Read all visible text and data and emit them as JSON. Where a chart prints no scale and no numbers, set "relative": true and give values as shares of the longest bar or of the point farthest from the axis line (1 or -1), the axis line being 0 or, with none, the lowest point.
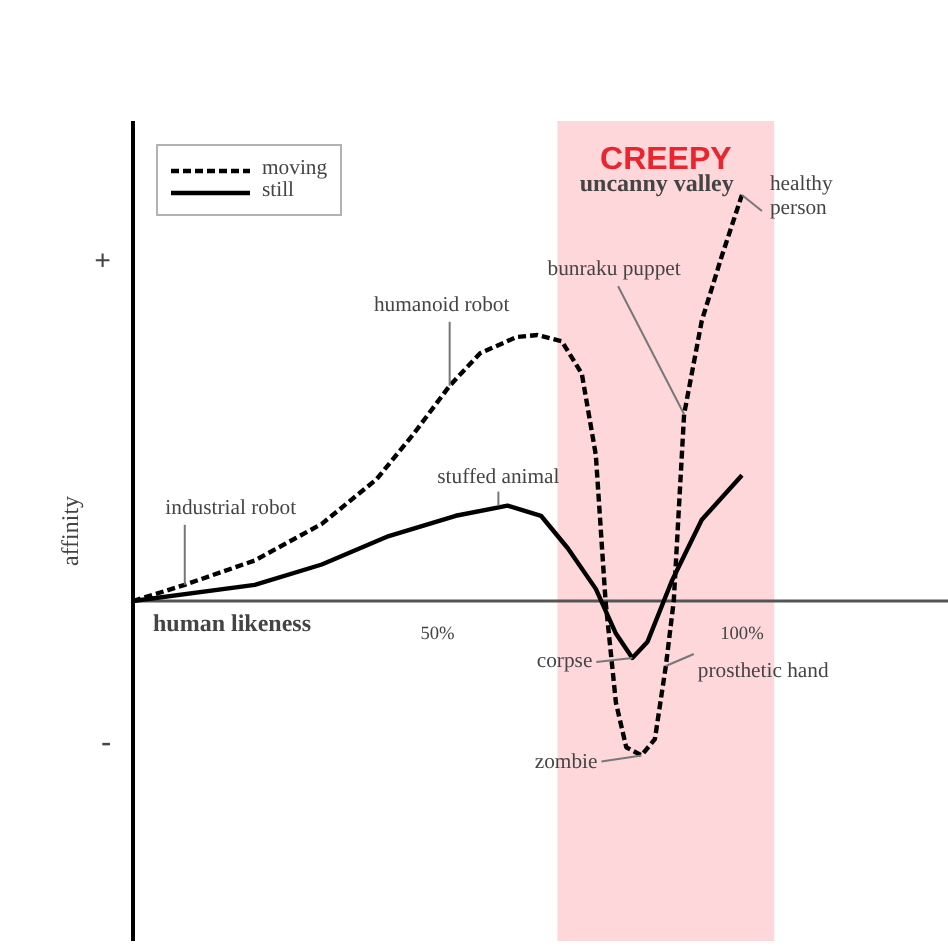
{
  "chart_data": {
    "type": "line",
    "relative": true,
    "xlabel": "human likeness",
    "ylabel": "affinity",
    "xlim": [
      0,
      134
    ],
    "xticks": [
      {
        "value": 50,
        "label": "50%"
      },
      {
        "value": 100,
        "label": "100%"
      }
    ],
    "grid": false,
    "legend": "top left",
    "bands": [
      {
        "axis": "x",
        "from": 69.7,
        "to": 105.3,
        "label": "CREEPY",
        "color": "#fdd7da"
      }
    ],
    "annotations": [
      "+",
      "-",
      "uncanny valley",
      {
        "text": "industrial robot",
        "x": 8.5,
        "y": 0.04
      },
      {
        "text": "humanoid robot",
        "x": 52,
        "y": 0.53
      },
      {
        "text": "stuffed animal",
        "x": 60,
        "y": 0.235
      },
      {
        "text": "bunraku puppet",
        "x": 90.5,
        "y": 0.46
      },
      {
        "text": "healthy\nperson",
        "x": 100,
        "y": 1
      },
      {
        "text": "corpse",
        "x": 82,
        "y": -0.14
      },
      {
        "text": "prosthetic hand",
        "x": 87.5,
        "y": -0.16
      },
      {
        "text": "zombie",
        "x": 83.5,
        "y": -0.38
      }
    ],
    "series": [
      {
        "name": "moving",
        "color": "#000000",
        "line_style": "dashed",
        "x": [
          0,
          8.5,
          20,
          31,
          40,
          46,
          52,
          57,
          63,
          66.4,
          70.4,
          73.7,
          76,
          77.6,
          79.3,
          81,
          83.5,
          85.7,
          87.5,
          88.8,
          90.5,
          93.4,
          96.7,
          100
        ],
        "values": [
          0,
          0.04,
          0.1,
          0.19,
          0.3,
          0.41,
          0.53,
          0.61,
          0.65,
          0.655,
          0.64,
          0.56,
          0.36,
          0,
          -0.25,
          -0.36,
          -0.38,
          -0.34,
          -0.16,
          0,
          0.46,
          0.69,
          0.85,
          1
        ]
      },
      {
        "name": "still",
        "color": "#000000",
        "line_style": "solid",
        "x": [
          0,
          20,
          31,
          42,
          53,
          61.5,
          67,
          71.4,
          76,
          79.3,
          82,
          84.5,
          88.5,
          93.4,
          100
        ],
        "values": [
          0,
          0.04,
          0.09,
          0.16,
          0.21,
          0.235,
          0.21,
          0.13,
          0.03,
          -0.08,
          -0.14,
          -0.1,
          0.05,
          0.2,
          0.31
        ]
      }
    ]
  }
}
